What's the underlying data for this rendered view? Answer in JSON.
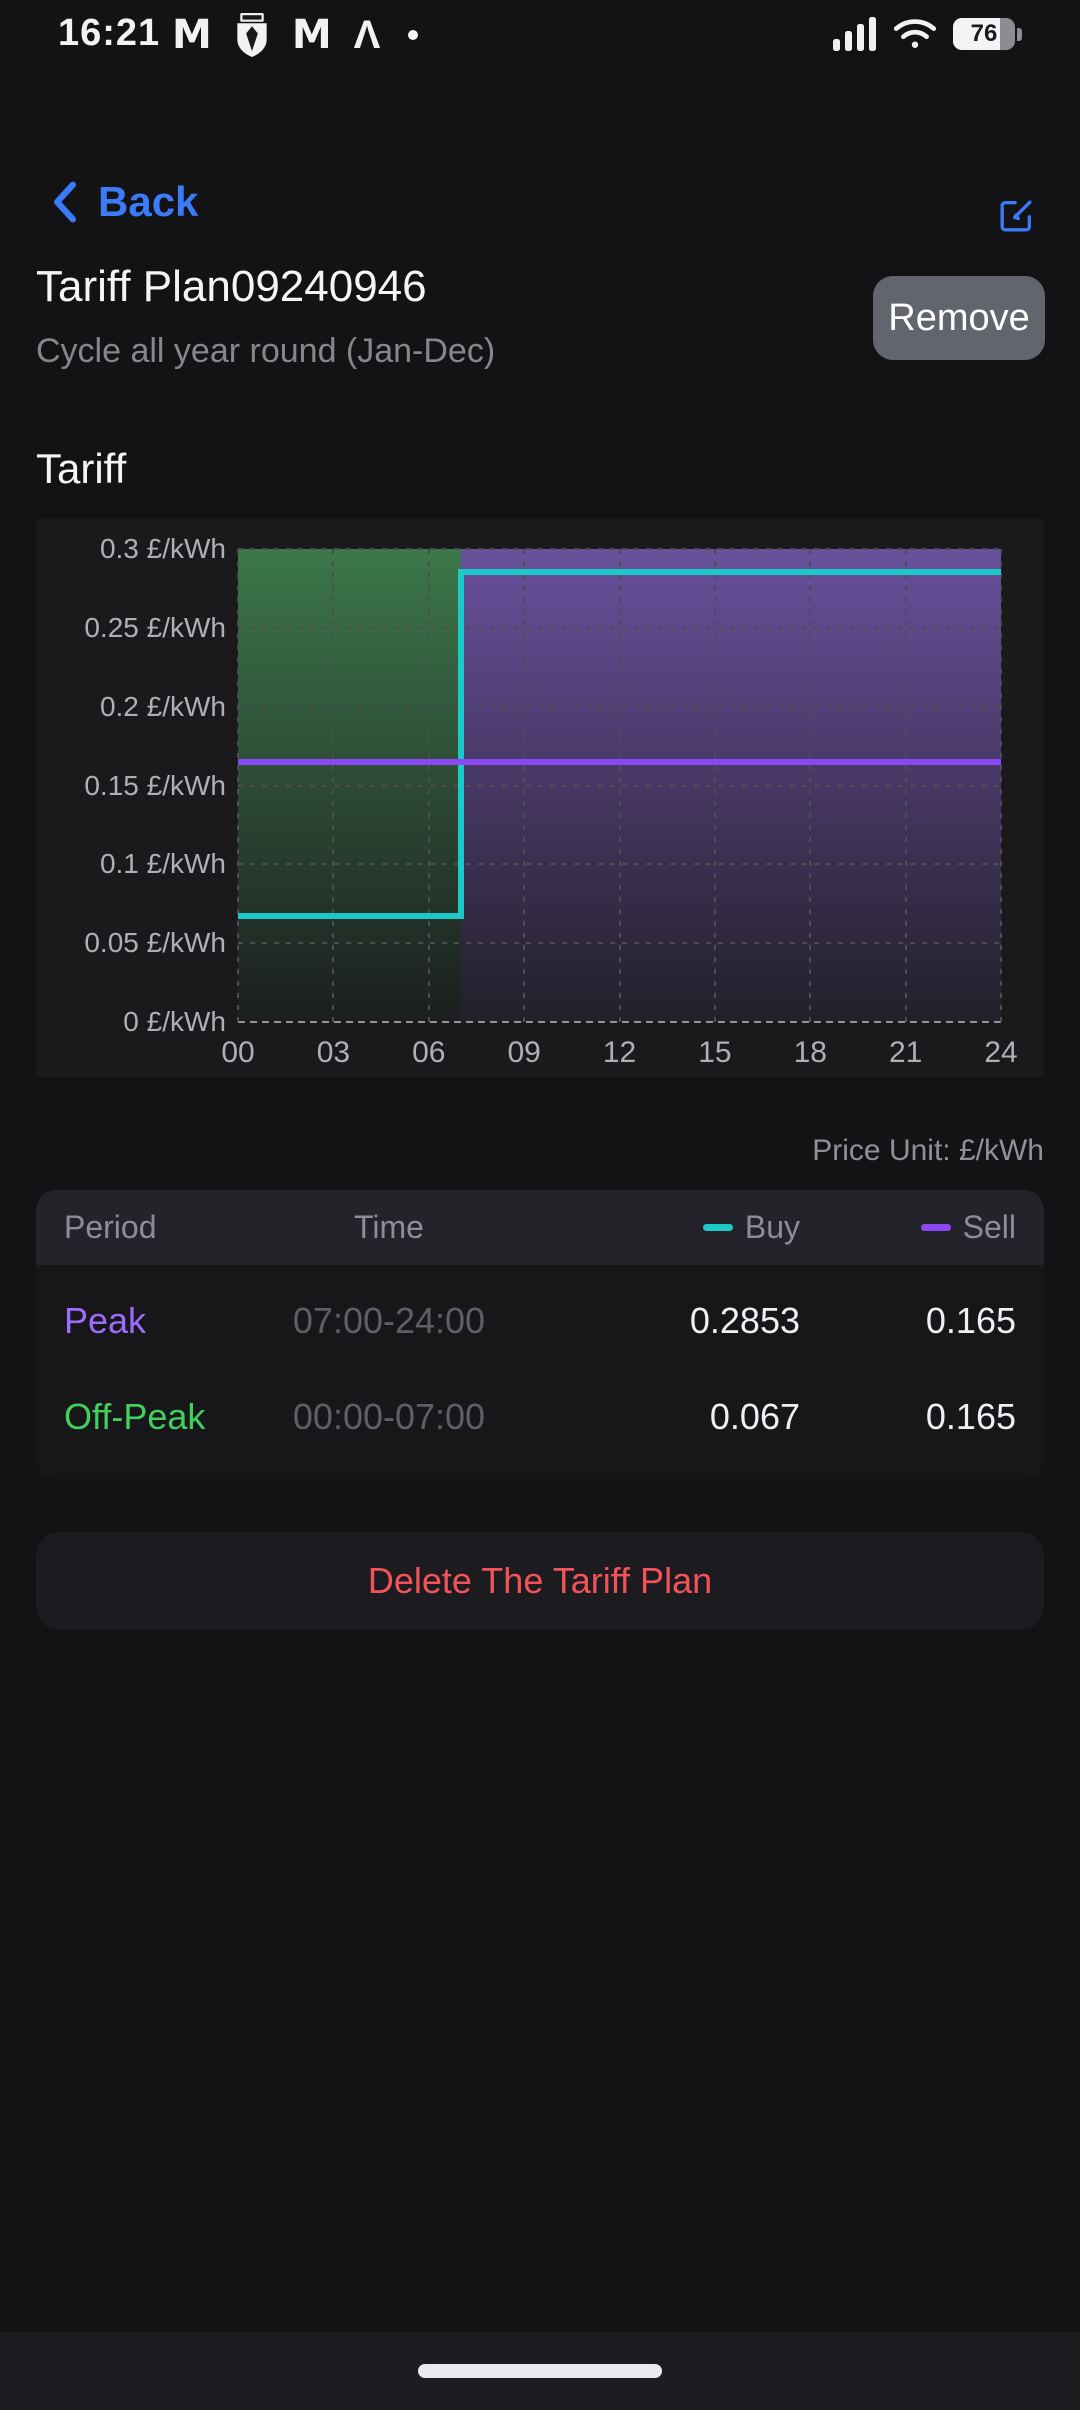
{
  "status_bar": {
    "time": "16:21",
    "battery_percent": "76",
    "notification_icons": [
      "gmail",
      "watford-crest",
      "gmail",
      "caret",
      "dot"
    ]
  },
  "nav": {
    "back_label": "Back"
  },
  "header": {
    "title": "Tariff Plan09240946",
    "subtitle": "Cycle all year round (Jan-Dec)",
    "remove_label": "Remove"
  },
  "section": {
    "tariff_heading": "Tariff",
    "price_unit_label": "Price Unit:  £/kWh"
  },
  "chart_data": {
    "type": "step-line",
    "title": "Tariff",
    "x_range": [
      0,
      24
    ],
    "y_range": [
      0,
      0.3
    ],
    "grid": {
      "color": "#4d4d52",
      "zero_color": "#93949b",
      "style": "dotted"
    },
    "x_ticks": [
      {
        "value": 0,
        "label": "00"
      },
      {
        "value": 3,
        "label": "03"
      },
      {
        "value": 6,
        "label": "06"
      },
      {
        "value": 9,
        "label": "09"
      },
      {
        "value": 12,
        "label": "12"
      },
      {
        "value": 15,
        "label": "15"
      },
      {
        "value": 18,
        "label": "18"
      },
      {
        "value": 21,
        "label": "21"
      },
      {
        "value": 24,
        "label": "24"
      }
    ],
    "y_ticks": [
      {
        "value": 0,
        "label": "0 £/kWh"
      },
      {
        "value": 0.05,
        "label": "0.05 £/kWh"
      },
      {
        "value": 0.1,
        "label": "0.1 £/kWh"
      },
      {
        "value": 0.15,
        "label": "0.15 £/kWh"
      },
      {
        "value": 0.2,
        "label": "0.2 £/kWh"
      },
      {
        "value": 0.25,
        "label": "0.25 £/kWh"
      },
      {
        "value": 0.3,
        "label": "0.3 £/kWh"
      }
    ],
    "bands": [
      {
        "name": "off-peak",
        "from": 0,
        "to": 7,
        "color_top": "rgba(62,124,76,0.95)",
        "color_bottom": "rgba(62,124,76,0.04)"
      },
      {
        "name": "peak",
        "from": 7,
        "to": 24,
        "color_top": "rgba(108,82,160,0.97)",
        "color_bottom": "rgba(108,82,160,0.10)"
      }
    ],
    "series": [
      {
        "name": "Buy",
        "color": "#1cc9c9",
        "points": [
          [
            0,
            0.067
          ],
          [
            7,
            0.067
          ],
          [
            7,
            0.2853
          ],
          [
            24,
            0.2853
          ]
        ]
      },
      {
        "name": "Sell",
        "color": "#8b46f5",
        "points": [
          [
            0,
            0.165
          ],
          [
            24,
            0.165
          ]
        ]
      }
    ]
  },
  "table": {
    "headers": {
      "period": "Period",
      "time": "Time",
      "buy": "Buy",
      "sell": "Sell"
    },
    "legend": {
      "buy_color": "#1cc9c9",
      "sell_color": "#8b46f5"
    },
    "rows": [
      {
        "period": "Peak",
        "period_color": "#9d6cfc",
        "time": "07:00-24:00",
        "buy": "0.2853",
        "sell": "0.165"
      },
      {
        "period": "Off-Peak",
        "period_color": "#41d05e",
        "time": "00:00-07:00",
        "buy": "0.067",
        "sell": "0.165"
      }
    ]
  },
  "actions": {
    "delete_label": "Delete The Tariff Plan"
  }
}
